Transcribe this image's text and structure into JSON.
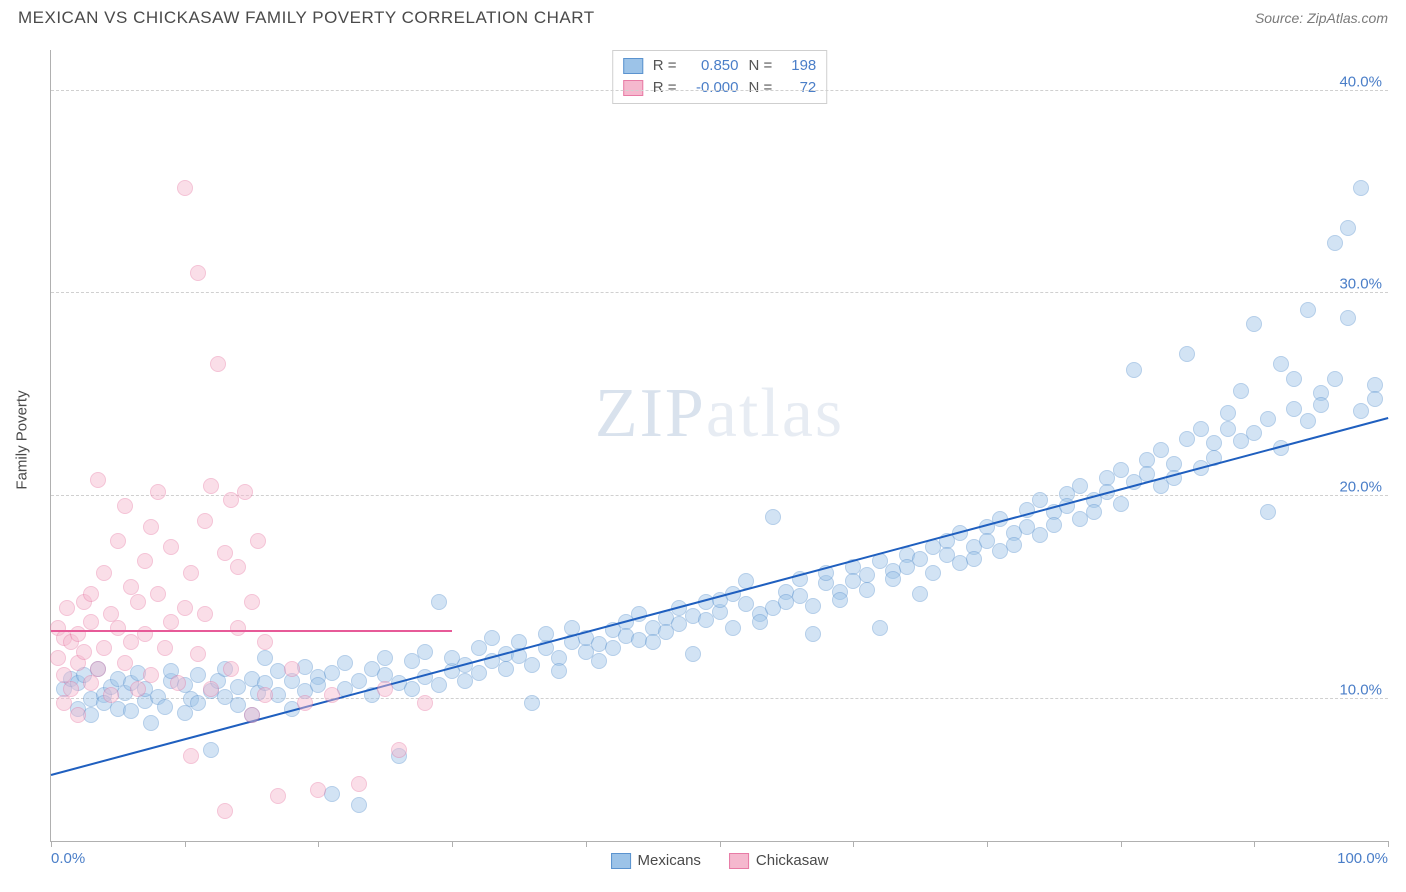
{
  "title": "MEXICAN VS CHICKASAW FAMILY POVERTY CORRELATION CHART",
  "source": "Source: ZipAtlas.com",
  "watermark_a": "ZIP",
  "watermark_b": "atlas",
  "chart": {
    "type": "scatter",
    "ylabel": "Family Poverty",
    "background_color": "#ffffff",
    "grid_color": "#d0d0d0",
    "axis_color": "#b0b0b0",
    "label_color": "#4a7ec8",
    "xlim": [
      0,
      100
    ],
    "ylim": [
      3,
      42
    ],
    "xtick_label_min": "0.0%",
    "xtick_label_max": "100.0%",
    "xticks": [
      0,
      10,
      20,
      30,
      40,
      50,
      60,
      70,
      80,
      90,
      100
    ],
    "ytick_labels": [
      "10.0%",
      "20.0%",
      "30.0%",
      "40.0%"
    ],
    "ytick_values": [
      10,
      20,
      30,
      40
    ],
    "point_radius": 8,
    "point_opacity": 0.45,
    "trend_width": 2
  },
  "series": [
    {
      "name": "Mexicans",
      "fill": "#9cc3e8",
      "stroke": "#5b93cf",
      "trend_color": "#1f5fbf",
      "r": "0.850",
      "n": "198",
      "trend": {
        "x1": 0,
        "y1": 6.2,
        "x2": 100,
        "y2": 23.8
      },
      "points": [
        [
          1,
          10.5
        ],
        [
          1.5,
          11
        ],
        [
          2,
          9.5
        ],
        [
          2,
          10.8
        ],
        [
          2.5,
          11.2
        ],
        [
          3,
          10
        ],
        [
          3,
          9.2
        ],
        [
          3.5,
          11.5
        ],
        [
          4,
          10.2
        ],
        [
          4,
          9.8
        ],
        [
          4.5,
          10.6
        ],
        [
          5,
          9.5
        ],
        [
          5,
          11
        ],
        [
          5.5,
          10.3
        ],
        [
          6,
          9.4
        ],
        [
          6,
          10.8
        ],
        [
          6.5,
          11.3
        ],
        [
          7,
          9.9
        ],
        [
          7,
          10.5
        ],
        [
          7.5,
          8.8
        ],
        [
          8,
          10.1
        ],
        [
          8.5,
          9.6
        ],
        [
          9,
          10.9
        ],
        [
          9,
          11.4
        ],
        [
          10,
          9.3
        ],
        [
          10,
          10.7
        ],
        [
          10.5,
          10
        ],
        [
          11,
          11.2
        ],
        [
          11,
          9.8
        ],
        [
          12,
          10.4
        ],
        [
          12,
          7.5
        ],
        [
          12.5,
          10.9
        ],
        [
          13,
          11.5
        ],
        [
          13,
          10.1
        ],
        [
          14,
          9.7
        ],
        [
          14,
          10.6
        ],
        [
          15,
          11
        ],
        [
          15,
          9.2
        ],
        [
          15.5,
          10.3
        ],
        [
          16,
          10.8
        ],
        [
          16,
          12
        ],
        [
          17,
          11.4
        ],
        [
          17,
          10.2
        ],
        [
          18,
          10.9
        ],
        [
          18,
          9.5
        ],
        [
          19,
          11.6
        ],
        [
          19,
          10.4
        ],
        [
          20,
          11.1
        ],
        [
          20,
          10.7
        ],
        [
          21,
          5.3
        ],
        [
          21,
          11.3
        ],
        [
          22,
          10.5
        ],
        [
          22,
          11.8
        ],
        [
          23,
          4.8
        ],
        [
          23,
          10.9
        ],
        [
          24,
          11.5
        ],
        [
          24,
          10.2
        ],
        [
          25,
          12
        ],
        [
          25,
          11.2
        ],
        [
          26,
          7.2
        ],
        [
          26,
          10.8
        ],
        [
          27,
          11.9
        ],
        [
          27,
          10.5
        ],
        [
          28,
          12.3
        ],
        [
          28,
          11.1
        ],
        [
          29,
          10.7
        ],
        [
          29,
          14.8
        ],
        [
          30,
          11.4
        ],
        [
          30,
          12
        ],
        [
          31,
          11.7
        ],
        [
          31,
          10.9
        ],
        [
          32,
          12.5
        ],
        [
          32,
          11.3
        ],
        [
          33,
          13
        ],
        [
          33,
          11.9
        ],
        [
          34,
          12.2
        ],
        [
          34,
          11.5
        ],
        [
          35,
          12.8
        ],
        [
          35,
          12.1
        ],
        [
          36,
          11.7
        ],
        [
          36,
          9.8
        ],
        [
          37,
          12.5
        ],
        [
          37,
          13.2
        ],
        [
          38,
          12
        ],
        [
          38,
          11.4
        ],
        [
          39,
          12.8
        ],
        [
          39,
          13.5
        ],
        [
          40,
          12.3
        ],
        [
          40,
          13
        ],
        [
          41,
          12.7
        ],
        [
          41,
          11.9
        ],
        [
          42,
          13.4
        ],
        [
          42,
          12.5
        ],
        [
          43,
          13.8
        ],
        [
          43,
          13.1
        ],
        [
          44,
          12.9
        ],
        [
          44,
          14.2
        ],
        [
          45,
          13.5
        ],
        [
          45,
          12.8
        ],
        [
          46,
          14
        ],
        [
          46,
          13.3
        ],
        [
          47,
          14.5
        ],
        [
          47,
          13.7
        ],
        [
          48,
          14.1
        ],
        [
          48,
          12.2
        ],
        [
          49,
          14.8
        ],
        [
          49,
          13.9
        ],
        [
          50,
          14.3
        ],
        [
          50,
          14.9
        ],
        [
          51,
          15.2
        ],
        [
          51,
          13.5
        ],
        [
          52,
          14.7
        ],
        [
          52,
          15.8
        ],
        [
          53,
          14.2
        ],
        [
          53,
          13.8
        ],
        [
          54,
          19
        ],
        [
          54,
          14.5
        ],
        [
          55,
          15.3
        ],
        [
          55,
          14.8
        ],
        [
          56,
          15.9
        ],
        [
          56,
          15.1
        ],
        [
          57,
          14.6
        ],
        [
          57,
          13.2
        ],
        [
          58,
          15.7
        ],
        [
          58,
          16.2
        ],
        [
          59,
          15.3
        ],
        [
          59,
          14.9
        ],
        [
          60,
          16.5
        ],
        [
          60,
          15.8
        ],
        [
          61,
          16.1
        ],
        [
          61,
          15.4
        ],
        [
          62,
          13.5
        ],
        [
          62,
          16.8
        ],
        [
          63,
          16.3
        ],
        [
          63,
          15.9
        ],
        [
          64,
          17.1
        ],
        [
          64,
          16.5
        ],
        [
          65,
          15.2
        ],
        [
          65,
          16.9
        ],
        [
          66,
          17.5
        ],
        [
          66,
          16.2
        ],
        [
          67,
          17.8
        ],
        [
          67,
          17.1
        ],
        [
          68,
          16.7
        ],
        [
          68,
          18.2
        ],
        [
          69,
          17.5
        ],
        [
          69,
          16.9
        ],
        [
          70,
          18.5
        ],
        [
          70,
          17.8
        ],
        [
          71,
          17.3
        ],
        [
          71,
          18.9
        ],
        [
          72,
          18.2
        ],
        [
          72,
          17.6
        ],
        [
          73,
          19.3
        ],
        [
          73,
          18.5
        ],
        [
          74,
          18.1
        ],
        [
          74,
          19.8
        ],
        [
          75,
          19.2
        ],
        [
          75,
          18.6
        ],
        [
          76,
          20.1
        ],
        [
          76,
          19.5
        ],
        [
          77,
          18.9
        ],
        [
          77,
          20.5
        ],
        [
          78,
          19.8
        ],
        [
          78,
          19.2
        ],
        [
          79,
          20.9
        ],
        [
          79,
          20.2
        ],
        [
          80,
          19.6
        ],
        [
          80,
          21.3
        ],
        [
          81,
          20.7
        ],
        [
          81,
          26.2
        ],
        [
          82,
          21.8
        ],
        [
          82,
          21.1
        ],
        [
          83,
          20.5
        ],
        [
          83,
          22.3
        ],
        [
          84,
          21.6
        ],
        [
          84,
          20.9
        ],
        [
          85,
          22.8
        ],
        [
          85,
          27
        ],
        [
          86,
          21.4
        ],
        [
          86,
          23.3
        ],
        [
          87,
          22.6
        ],
        [
          87,
          21.9
        ],
        [
          88,
          24.1
        ],
        [
          88,
          23.3
        ],
        [
          89,
          22.7
        ],
        [
          89,
          25.2
        ],
        [
          90,
          28.5
        ],
        [
          90,
          23.1
        ],
        [
          91,
          19.2
        ],
        [
          91,
          23.8
        ],
        [
          92,
          22.4
        ],
        [
          92,
          26.5
        ],
        [
          93,
          25.8
        ],
        [
          93,
          24.3
        ],
        [
          94,
          23.7
        ],
        [
          94,
          29.2
        ],
        [
          95,
          25.1
        ],
        [
          95,
          24.5
        ],
        [
          96,
          32.5
        ],
        [
          96,
          25.8
        ],
        [
          97,
          28.8
        ],
        [
          97,
          33.2
        ],
        [
          98,
          24.2
        ],
        [
          98,
          35.2
        ],
        [
          99,
          25.5
        ],
        [
          99,
          24.8
        ]
      ]
    },
    {
      "name": "Chickasaw",
      "fill": "#f5b8ce",
      "stroke": "#e87ba5",
      "trend_color": "#e75a98",
      "r": "-0.000",
      "n": "72",
      "trend": {
        "x1": 0,
        "y1": 13.3,
        "x2": 30,
        "y2": 13.3
      },
      "points": [
        [
          0.5,
          12
        ],
        [
          0.5,
          13.5
        ],
        [
          1,
          9.8
        ],
        [
          1,
          11.2
        ],
        [
          1,
          13
        ],
        [
          1.2,
          14.5
        ],
        [
          1.5,
          10.5
        ],
        [
          1.5,
          12.8
        ],
        [
          2,
          11.8
        ],
        [
          2,
          13.2
        ],
        [
          2,
          9.2
        ],
        [
          2.5,
          14.8
        ],
        [
          2.5,
          12.3
        ],
        [
          3,
          10.8
        ],
        [
          3,
          15.2
        ],
        [
          3,
          13.8
        ],
        [
          3.5,
          11.5
        ],
        [
          3.5,
          20.8
        ],
        [
          4,
          12.5
        ],
        [
          4,
          16.2
        ],
        [
          4.5,
          14.2
        ],
        [
          4.5,
          10.2
        ],
        [
          5,
          17.8
        ],
        [
          5,
          13.5
        ],
        [
          5.5,
          11.8
        ],
        [
          5.5,
          19.5
        ],
        [
          6,
          15.5
        ],
        [
          6,
          12.8
        ],
        [
          6.5,
          14.8
        ],
        [
          6.5,
          10.5
        ],
        [
          7,
          16.8
        ],
        [
          7,
          13.2
        ],
        [
          7.5,
          18.5
        ],
        [
          7.5,
          11.2
        ],
        [
          8,
          15.2
        ],
        [
          8,
          20.2
        ],
        [
          8.5,
          12.5
        ],
        [
          9,
          17.5
        ],
        [
          9,
          13.8
        ],
        [
          9.5,
          10.8
        ],
        [
          10,
          35.2
        ],
        [
          10,
          14.5
        ],
        [
          10.5,
          16.2
        ],
        [
          10.5,
          7.2
        ],
        [
          11,
          31
        ],
        [
          11,
          12.2
        ],
        [
          11.5,
          18.8
        ],
        [
          11.5,
          14.2
        ],
        [
          12,
          20.5
        ],
        [
          12,
          10.5
        ],
        [
          12.5,
          26.5
        ],
        [
          13,
          17.2
        ],
        [
          13,
          4.5
        ],
        [
          13.5,
          11.5
        ],
        [
          13.5,
          19.8
        ],
        [
          14,
          13.5
        ],
        [
          14,
          16.5
        ],
        [
          14.5,
          20.2
        ],
        [
          15,
          9.2
        ],
        [
          15,
          14.8
        ],
        [
          15.5,
          17.8
        ],
        [
          16,
          12.8
        ],
        [
          16,
          10.2
        ],
        [
          17,
          5.2
        ],
        [
          18,
          11.5
        ],
        [
          19,
          9.8
        ],
        [
          20,
          5.5
        ],
        [
          21,
          10.2
        ],
        [
          23,
          5.8
        ],
        [
          25,
          10.5
        ],
        [
          26,
          7.5
        ],
        [
          28,
          9.8
        ]
      ]
    }
  ],
  "legend_top": {
    "r_label": "R =",
    "n_label": "N ="
  },
  "legend_bottom": {
    "s1": "Mexicans",
    "s2": "Chickasaw"
  }
}
